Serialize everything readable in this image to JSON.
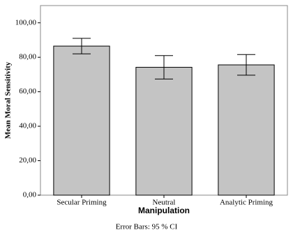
{
  "chart_data": {
    "type": "bar",
    "categories": [
      "Secular Priming",
      "Neutral",
      "Analytic Priming"
    ],
    "values": [
      86.5,
      74.2,
      75.6
    ],
    "errors": [
      4.5,
      6.8,
      6.0
    ],
    "color": "#c4c4c4",
    "x_label": "Manipulation",
    "y_label": "Mean Moral Sensitivity",
    "caption": "Error Bars: 95 % CI",
    "ylim": [
      0,
      110
    ],
    "yticks": [
      {
        "value": 0,
        "label": "0,00"
      },
      {
        "value": 20,
        "label": "20,00"
      },
      {
        "value": 40,
        "label": "40,00"
      },
      {
        "value": 60,
        "label": "60,00"
      },
      {
        "value": 80,
        "label": "80,00"
      },
      {
        "value": 100,
        "label": "100,00"
      }
    ]
  }
}
